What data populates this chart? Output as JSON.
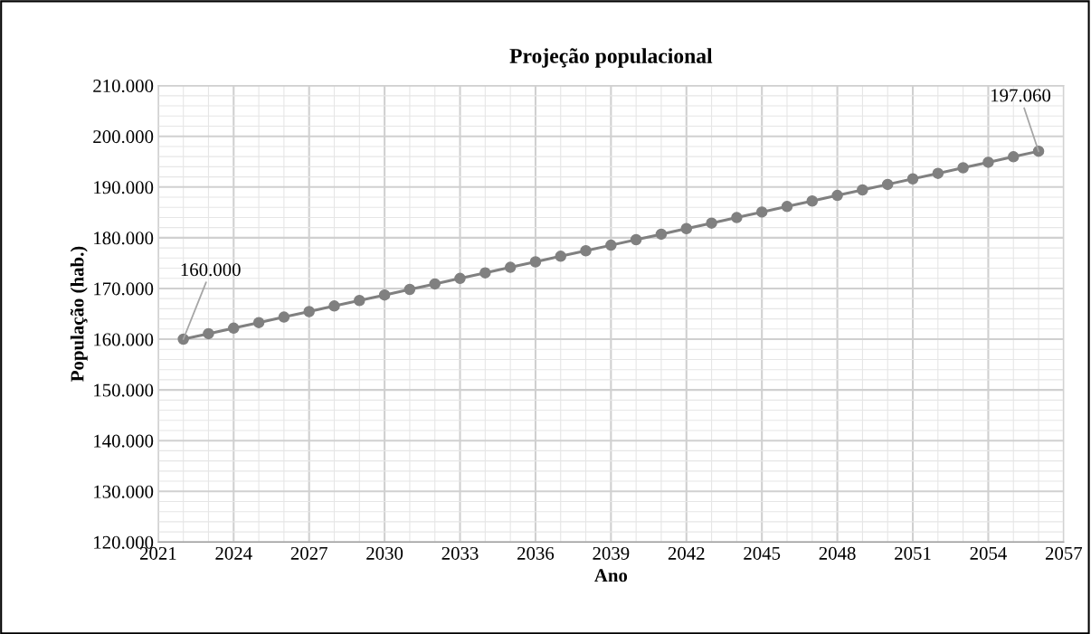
{
  "chart_data": {
    "type": "line",
    "title": "Projeção populacional",
    "xlabel": "Ano",
    "ylabel": "População (hab.)",
    "x": [
      2022,
      2023,
      2024,
      2025,
      2026,
      2027,
      2028,
      2029,
      2030,
      2031,
      2032,
      2033,
      2034,
      2035,
      2036,
      2037,
      2038,
      2039,
      2040,
      2041,
      2042,
      2043,
      2044,
      2045,
      2046,
      2047,
      2048,
      2049,
      2050,
      2051,
      2052,
      2053,
      2054,
      2055,
      2056
    ],
    "series": [
      {
        "color": "#808080",
        "values": [
          160000,
          161090,
          162180,
          163270,
          164360,
          165450,
          166540,
          167630,
          168720,
          169810,
          170900,
          171990,
          173080,
          174170,
          175260,
          176350,
          177440,
          178530,
          179620,
          180710,
          181800,
          182890,
          183980,
          185070,
          186160,
          187250,
          188340,
          189430,
          190520,
          191610,
          192700,
          193790,
          194880,
          195970,
          197060
        ]
      }
    ],
    "xlim": [
      2021,
      2057
    ],
    "xticks": [
      2021,
      2024,
      2027,
      2030,
      2033,
      2036,
      2039,
      2042,
      2045,
      2048,
      2051,
      2054,
      2057
    ],
    "ylim": [
      120000,
      210000
    ],
    "yticks": [
      {
        "value": 120000,
        "label": "120.000"
      },
      {
        "value": 130000,
        "label": "130.000"
      },
      {
        "value": 140000,
        "label": "140.000"
      },
      {
        "value": 150000,
        "label": "150.000"
      },
      {
        "value": 160000,
        "label": "160.000"
      },
      {
        "value": 170000,
        "label": "170.000"
      },
      {
        "value": 180000,
        "label": "180.000"
      },
      {
        "value": 190000,
        "label": "190.000"
      },
      {
        "value": 200000,
        "label": "200.000"
      },
      {
        "value": 210000,
        "label": "210.000"
      }
    ],
    "annotations": [
      {
        "text": "160.000",
        "x": 2022,
        "y": 160000
      },
      {
        "text": "197.060",
        "x": 2056,
        "y": 197060
      }
    ],
    "grid": true,
    "marker": "circle",
    "line_style": "solid",
    "legend": false
  }
}
